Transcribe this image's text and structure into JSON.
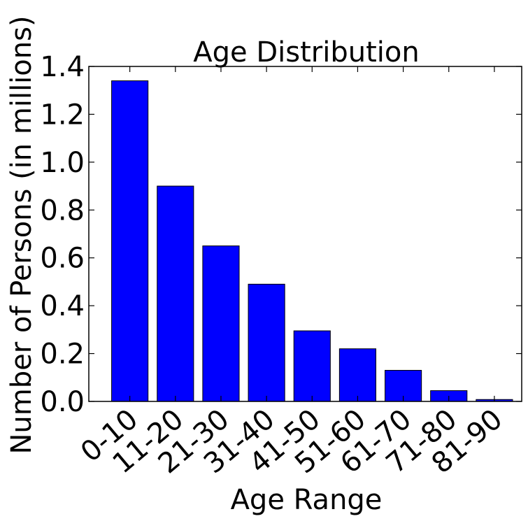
{
  "chart_data": {
    "type": "bar",
    "title": "Age Distribution",
    "xlabel": "Age Range",
    "ylabel": "Number of Persons (in millions)",
    "categories": [
      "0-10",
      "11-20",
      "21-30",
      "31-40",
      "41-50",
      "51-60",
      "61-70",
      "71-80",
      "81-90"
    ],
    "values": [
      1.34,
      0.9,
      0.65,
      0.49,
      0.295,
      0.22,
      0.13,
      0.045,
      0.008
    ],
    "ylim": [
      0,
      1.4
    ],
    "yticks": [
      "0.0",
      "0.2",
      "0.4",
      "0.6",
      "0.8",
      "1.0",
      "1.2",
      "1.4"
    ],
    "bar_color": "#0000ff",
    "grid": false
  }
}
